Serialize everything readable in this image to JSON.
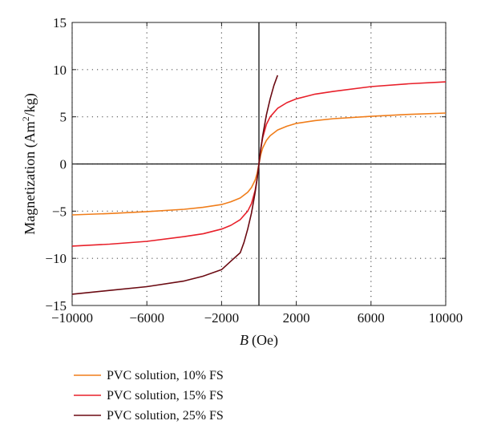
{
  "chart_data": {
    "type": "line",
    "title": "",
    "xlabel": {
      "var": "B",
      "unit": "(Oe)"
    },
    "ylabel": {
      "pre": "Magnetization (Am",
      "sup": "2",
      "post": "/kg)"
    },
    "xlim": [
      -10000,
      10000
    ],
    "ylim": [
      -15,
      15
    ],
    "xticks": [
      -10000,
      -6000,
      -2000,
      2000,
      6000,
      10000
    ],
    "xtick_labels": [
      "−10000",
      "−6000",
      "−2000",
      "2000",
      "6000",
      "10000"
    ],
    "yticks": [
      -15,
      -10,
      -5,
      0,
      5,
      10,
      15
    ],
    "ytick_labels": [
      "−15",
      "−10",
      "−5",
      "0",
      "5",
      "10",
      "15"
    ],
    "grid": "dotted",
    "legend_position": "bottom-left",
    "series": [
      {
        "name": "PVC solution, 10% FS",
        "color": "#F07D1A",
        "x": [
          -10000,
          -8000,
          -6000,
          -4000,
          -3000,
          -2000,
          -1500,
          -1000,
          -600,
          -400,
          -200,
          -100,
          0,
          100,
          200,
          400,
          600,
          1000,
          1500,
          2000,
          3000,
          4000,
          6000,
          8000,
          10000
        ],
        "y": [
          -5.4,
          -5.25,
          -5.05,
          -4.8,
          -4.6,
          -4.3,
          -4.0,
          -3.6,
          -3.0,
          -2.5,
          -1.7,
          -1.0,
          0,
          1.0,
          1.7,
          2.5,
          3.0,
          3.6,
          4.0,
          4.3,
          4.6,
          4.8,
          5.05,
          5.25,
          5.4
        ]
      },
      {
        "name": "PVC solution, 15% FS",
        "color": "#E8202A",
        "x": [
          -10000,
          -8000,
          -6000,
          -4000,
          -3000,
          -2000,
          -1500,
          -1000,
          -600,
          -400,
          -200,
          -100,
          0,
          100,
          200,
          400,
          600,
          1000,
          1500,
          2000,
          3000,
          4000,
          6000,
          8000,
          10000
        ],
        "y": [
          -8.7,
          -8.5,
          -8.2,
          -7.7,
          -7.4,
          -6.9,
          -6.5,
          -5.9,
          -5.0,
          -4.2,
          -2.8,
          -1.6,
          0,
          1.6,
          2.8,
          4.2,
          5.0,
          5.9,
          6.5,
          6.9,
          7.4,
          7.7,
          8.2,
          8.5,
          8.7
        ]
      },
      {
        "name": "PVC solution, 25% FS",
        "color": "#6B0A12",
        "x": [
          -10000,
          -8000,
          -6000,
          -4000,
          -3000,
          -2000,
          -1500,
          -1000,
          -800,
          -600,
          -400,
          -200,
          -100,
          0,
          100,
          200,
          400,
          600,
          800,
          1000
        ],
        "y": [
          -13.8,
          -13.4,
          -13.0,
          -12.4,
          -11.9,
          -11.2,
          -10.3,
          -9.4,
          -8.3,
          -6.9,
          -5.2,
          -3.0,
          -1.6,
          0,
          1.6,
          3.0,
          5.2,
          6.9,
          8.3,
          9.4
        ]
      }
    ]
  }
}
